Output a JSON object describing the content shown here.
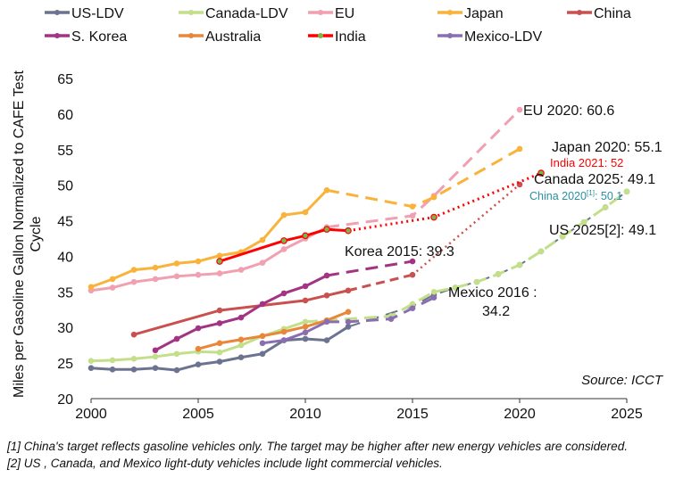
{
  "chart_data": {
    "type": "line",
    "title": "",
    "xlabel": "",
    "ylabel": "Miles per Gasoline Gallon Normalized to CAFE Test Cycle",
    "xlim": [
      2000,
      2025
    ],
    "ylim": [
      20,
      65
    ],
    "xticks": [
      "2000",
      "2005",
      "2010",
      "2015",
      "2020",
      "2025"
    ],
    "yticks": [
      "20",
      "25",
      "30",
      "35",
      "40",
      "45",
      "50",
      "55",
      "60",
      "65"
    ],
    "grid": false,
    "legend_position": "top",
    "source": "Source: ICCT",
    "series": [
      {
        "name": "US-LDV",
        "color": "#6b7390",
        "solid_until": 2012,
        "projection": "dash",
        "x": [
          2000,
          2001,
          2002,
          2003,
          2004,
          2005,
          2006,
          2007,
          2008,
          2009,
          2010,
          2011,
          2012,
          2015,
          2016,
          2017,
          2018,
          2019,
          2020,
          2021,
          2022,
          2023,
          2024,
          2025
        ],
        "y": [
          24.3,
          24.1,
          24.1,
          24.3,
          24.0,
          24.8,
          25.2,
          25.8,
          26.3,
          28.2,
          28.4,
          28.2,
          30.1,
          33.0,
          34.6,
          35.6,
          36.4,
          37.5,
          38.8,
          40.7,
          42.8,
          44.8,
          46.9,
          49.1
        ]
      },
      {
        "name": "Canada-LDV",
        "color": "#c3df8a",
        "solid_until": 2010,
        "projection": "dash",
        "x": [
          2000,
          2001,
          2002,
          2003,
          2004,
          2005,
          2006,
          2007,
          2008,
          2009,
          2010,
          2011,
          2014,
          2015,
          2016,
          2017,
          2018,
          2019,
          2020,
          2021,
          2022,
          2023,
          2024,
          2025
        ],
        "y": [
          25.3,
          25.4,
          25.6,
          25.9,
          26.3,
          26.6,
          26.5,
          27.5,
          28.8,
          29.8,
          30.8,
          31.0,
          31.6,
          33.3,
          35.0,
          35.6,
          36.4,
          37.5,
          38.8,
          40.7,
          42.8,
          44.8,
          46.9,
          49.1
        ]
      },
      {
        "name": "EU",
        "color": "#f0a0b0",
        "solid_until": 2011,
        "projection": "dash",
        "x": [
          2000,
          2001,
          2002,
          2003,
          2004,
          2005,
          2006,
          2007,
          2008,
          2009,
          2010,
          2011,
          2015,
          2016,
          2020
        ],
        "y": [
          35.2,
          35.6,
          36.4,
          36.8,
          37.2,
          37.4,
          37.6,
          38.1,
          39.1,
          41.0,
          42.5,
          44.1,
          45.7,
          48.5,
          60.6
        ]
      },
      {
        "name": "Japan",
        "color": "#f9b23a",
        "solid_until": 2011,
        "projection": "dash",
        "x": [
          2000,
          2001,
          2002,
          2003,
          2004,
          2005,
          2006,
          2007,
          2008,
          2009,
          2010,
          2011,
          2015,
          2016,
          2020
        ],
        "y": [
          35.7,
          36.8,
          38.1,
          38.4,
          39.0,
          39.3,
          40.1,
          40.6,
          42.3,
          45.8,
          46.2,
          49.3,
          47.0,
          48.3,
          55.1
        ]
      },
      {
        "name": "China",
        "color": "#c9504f",
        "solid_until": 2012,
        "projection": "dash-dot",
        "x": [
          2002,
          2006,
          2010,
          2011,
          2012,
          2015,
          2020
        ],
        "y": [
          29.0,
          32.4,
          33.8,
          34.5,
          35.2,
          37.4,
          50.1
        ]
      },
      {
        "name": "S. Korea",
        "color": "#a23483",
        "solid_until": 2011,
        "projection": "dash",
        "x": [
          2003,
          2004,
          2005,
          2006,
          2007,
          2008,
          2009,
          2010,
          2011,
          2015
        ],
        "y": [
          26.8,
          28.4,
          29.9,
          30.6,
          31.4,
          33.3,
          34.8,
          35.8,
          37.3,
          39.3
        ]
      },
      {
        "name": "Australia",
        "color": "#e8873a",
        "solid_until": 2012,
        "projection": "dash",
        "x": [
          2005,
          2006,
          2007,
          2008,
          2009,
          2010,
          2011,
          2012
        ],
        "y": [
          27.0,
          27.8,
          28.3,
          28.8,
          29.4,
          30.1,
          31.0,
          32.2
        ]
      },
      {
        "name": "India",
        "color": "#ff0000",
        "solid_until": 2012,
        "projection": "dot",
        "x": [
          2006,
          2009,
          2010,
          2011,
          2012,
          2016,
          2021
        ],
        "y": [
          39.3,
          42.2,
          42.9,
          43.8,
          43.6,
          45.5,
          51.7
        ]
      },
      {
        "name": "Mexico-LDV",
        "color": "#8a6fb0",
        "solid_until": 2011,
        "projection": "dash",
        "x": [
          2008,
          2009,
          2010,
          2011,
          2012,
          2014,
          2015,
          2016
        ],
        "y": [
          27.8,
          28.2,
          29.3,
          30.8,
          30.8,
          31.2,
          32.7,
          34.2
        ]
      }
    ],
    "annotations": [
      {
        "text": "EU 2020: 60.6",
        "color": "#111111"
      },
      {
        "text": "Japan 2020: 55.1",
        "color": "#111111"
      },
      {
        "text": "India 2021: 52",
        "color": "#ff0000"
      },
      {
        "text": "Canada 2025: 49.1",
        "color": "#111111"
      },
      {
        "text": "China 2020",
        "sup": "[1]",
        "text2": ": 50.1",
        "color": "#2a8fa3"
      },
      {
        "text": "US 2025[2]: 49.1",
        "color": "#111111"
      },
      {
        "text": "Korea 2015: 39.3",
        "color": "#111111"
      },
      {
        "text": "Mexico 2016 :",
        "text2": "34.2",
        "color": "#111111"
      }
    ]
  },
  "footnotes": [
    "[1] China's target reflects gasoline vehicles only. The target may be higher after new energy vehicles are considered.",
    "[2] US , Canada, and Mexico light-duty vehicles include light commercial vehicles."
  ]
}
